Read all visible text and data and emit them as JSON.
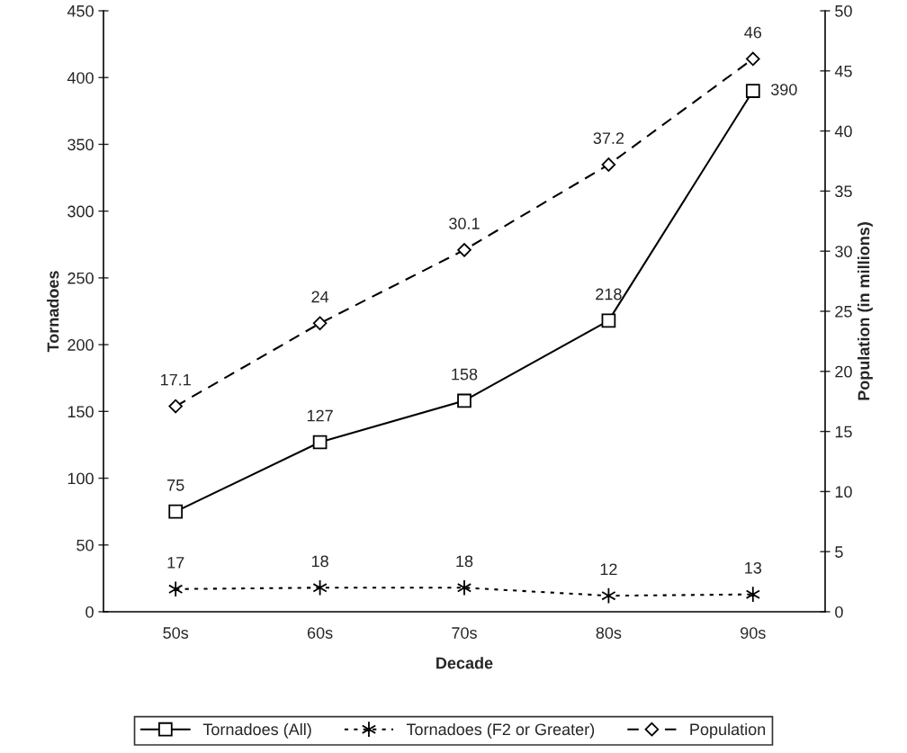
{
  "chart_data": {
    "type": "line",
    "xlabel": "Decade",
    "ylabel": "Tornadoes",
    "y2label": "Population (in millions)",
    "categories": [
      "50s",
      "60s",
      "70s",
      "80s",
      "90s"
    ],
    "series": [
      {
        "name": "Tornadoes (All)",
        "color": "#000000",
        "values": [
          75,
          127,
          158,
          218,
          390
        ],
        "marker": "square",
        "line_style": "solid"
      },
      {
        "name": "Tornadoes (F2 or Greater)",
        "color": "#000000",
        "values": [
          17,
          18,
          18,
          12,
          13
        ],
        "marker": "cross",
        "line_style": "dotted"
      },
      {
        "name": "Population",
        "color": "#000000",
        "values": [
          17.1,
          24,
          30.1,
          37.2,
          46
        ],
        "marker": "diamond",
        "line_style": "dashed",
        "axis": "y2"
      }
    ],
    "ylim": [
      0,
      450
    ],
    "yticks": [
      0,
      50,
      100,
      150,
      200,
      250,
      300,
      350,
      400,
      450
    ],
    "y2lim": [
      0,
      50
    ],
    "y2ticks": [
      0,
      5,
      10,
      15,
      20,
      25,
      30,
      35,
      40,
      45,
      50
    ],
    "data_labels": true,
    "legend": "bottom",
    "grid": false
  }
}
